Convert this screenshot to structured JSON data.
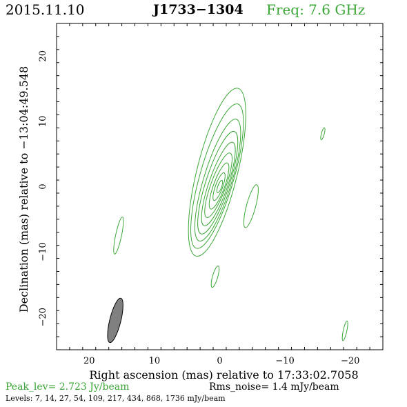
{
  "header": {
    "date": "2015.11.10",
    "source": "J1733−1304",
    "freq": "Freq:  7.6 GHz"
  },
  "colors": {
    "contour": "#3aa635",
    "beam_fill": "#808080",
    "frame": "#000000"
  },
  "footer": {
    "peak": "Peak_lev=  2.723 Jy/beam",
    "rms": "Rms_noise=   1.4 mJy/beam",
    "levels": "Levels:   7,  14,  27,  54, 109, 217, 434, 868, 1736 mJy/beam"
  },
  "chart_data": {
    "type": "contour",
    "xlabel": "Right ascension (mas) relative to 17:33:02.7058",
    "ylabel": "Declination (mas) relative to −13:04:49.548",
    "xlim": [
      25,
      -25
    ],
    "ylim": [
      -25,
      25
    ],
    "x_ticks": [
      20,
      10,
      0,
      -10,
      -20
    ],
    "x_tick_labels": [
      "20",
      "10",
      "0",
      "−10",
      "−20"
    ],
    "y_ticks": [
      20,
      10,
      0,
      -10,
      -20
    ],
    "y_tick_labels": [
      "20",
      "10",
      "0",
      "−10",
      "−20"
    ],
    "levels_mjy_per_beam": [
      7,
      14,
      27,
      54,
      109,
      217,
      434,
      868,
      1736
    ],
    "peak_jy_per_beam": 2.723,
    "rms_mjy_per_beam": 1.4,
    "beam": {
      "x": 16,
      "y": -20.5,
      "major": 7,
      "minor": 1.7,
      "pa_deg": 14
    },
    "contours": [
      {
        "name": "main-7",
        "cx": 0.4,
        "cy": 2.2,
        "major": 26.5,
        "minor": 6.2,
        "pa": 14
      },
      {
        "name": "main-14",
        "cx": 0.4,
        "cy": 1.6,
        "major": 23.0,
        "minor": 5.2,
        "pa": 16
      },
      {
        "name": "main-27",
        "cx": 0.3,
        "cy": 1.0,
        "major": 19.5,
        "minor": 4.3,
        "pa": 17
      },
      {
        "name": "main-54",
        "cx": 0.3,
        "cy": 0.6,
        "major": 16.5,
        "minor": 3.6,
        "pa": 18
      },
      {
        "name": "main-109",
        "cx": 0.2,
        "cy": 0.4,
        "major": 13.5,
        "minor": 2.9,
        "pa": 19
      },
      {
        "name": "main-217",
        "cx": 0.2,
        "cy": 0.2,
        "major": 10.5,
        "minor": 2.3,
        "pa": 20
      },
      {
        "name": "main-434",
        "cx": 0.1,
        "cy": 0.1,
        "major": 7.5,
        "minor": 1.7,
        "pa": 20
      },
      {
        "name": "main-868",
        "cx": 0.1,
        "cy": 0.0,
        "major": 4.5,
        "minor": 1.1,
        "pa": 20
      },
      {
        "name": "main-1736",
        "cx": 0.0,
        "cy": 0.0,
        "major": 2.0,
        "minor": 0.6,
        "pa": 20
      },
      {
        "name": "blob-east",
        "cx": 15.5,
        "cy": -7.5,
        "major": 5.8,
        "minor": 0.9,
        "pa": 12
      },
      {
        "name": "blob-west",
        "cx": -4.8,
        "cy": -3.0,
        "major": 6.8,
        "minor": 1.4,
        "pa": 15
      },
      {
        "name": "blob-south",
        "cx": 0.7,
        "cy": -13.8,
        "major": 3.4,
        "minor": 0.8,
        "pa": 16
      },
      {
        "name": "blob-ne-far",
        "cx": -15.8,
        "cy": 8.1,
        "major": 1.9,
        "minor": 0.45,
        "pa": 15
      },
      {
        "name": "blob-sw-far",
        "cx": -19.2,
        "cy": -22.1,
        "major": 3.1,
        "minor": 0.55,
        "pa": 12
      }
    ]
  }
}
